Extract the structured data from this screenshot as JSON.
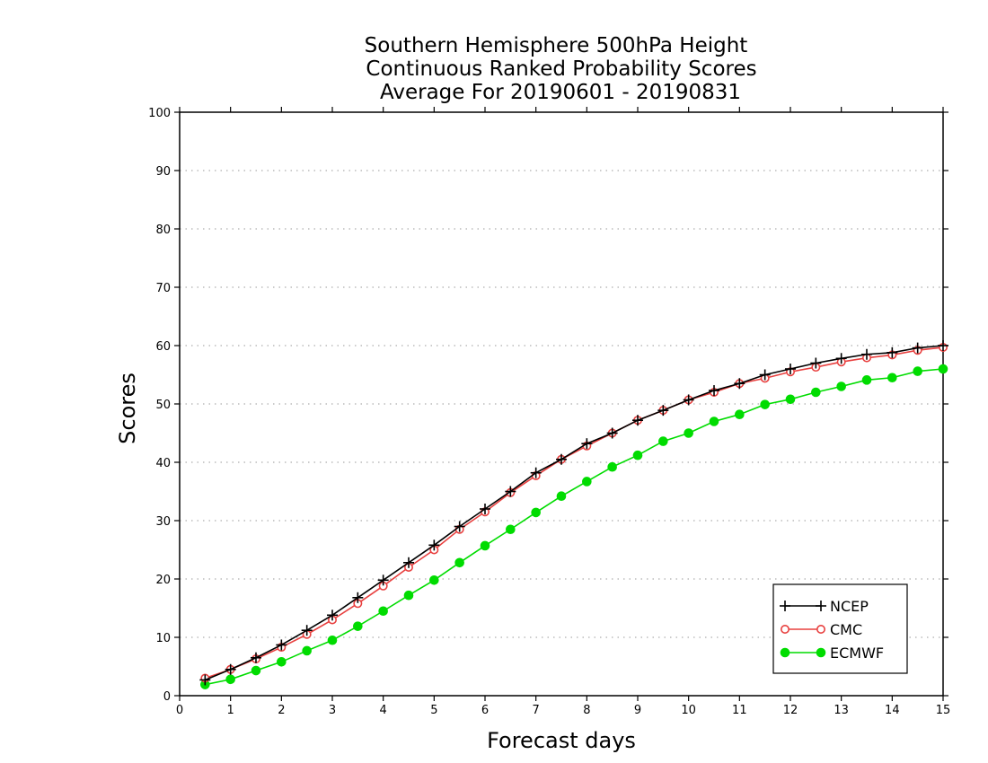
{
  "chart_data": {
    "type": "line",
    "title": [
      "Southern Hemisphere 500hPa Height",
      "Continuous Ranked Probability Scores",
      "Average For 20190601 - 20190831"
    ],
    "xlabel": "Forecast days",
    "ylabel": "Scores",
    "xlim": [
      0,
      15
    ],
    "ylim": [
      0,
      100
    ],
    "xticks": [
      "0",
      "1",
      "2",
      "3",
      "4",
      "5",
      "6",
      "7",
      "8",
      "9",
      "10",
      "11",
      "12",
      "13",
      "14",
      "15"
    ],
    "yticks": [
      "0",
      "10",
      "20",
      "30",
      "40",
      "50",
      "60",
      "70",
      "80",
      "90",
      "100"
    ],
    "grid": "dotted-horizontal",
    "legend_position": "bottom-right",
    "x": [
      0.5,
      1,
      1.5,
      2,
      2.5,
      3,
      3.5,
      4,
      4.5,
      5,
      5.5,
      6,
      6.5,
      7,
      7.5,
      8,
      8.5,
      9,
      9.5,
      10,
      10.5,
      11,
      11.5,
      12,
      12.5,
      13,
      13.5,
      14,
      14.5,
      15
    ],
    "series": [
      {
        "name": "NCEP",
        "color": "#000000",
        "marker": "plus",
        "values": [
          2.7,
          4.5,
          6.5,
          8.7,
          11.2,
          13.8,
          16.8,
          19.8,
          22.8,
          25.8,
          29.0,
          32.0,
          35.0,
          38.2,
          40.5,
          43.2,
          45.0,
          47.2,
          48.9,
          50.7,
          52.3,
          53.5,
          55.0,
          56.0,
          57.0,
          57.8,
          58.5,
          58.8,
          59.6,
          60.0
        ]
      },
      {
        "name": "CMC",
        "color": "#e8403f",
        "marker": "open-circle",
        "values": [
          3.0,
          4.5,
          6.3,
          8.3,
          10.5,
          13.0,
          15.8,
          18.8,
          22.0,
          25.0,
          28.5,
          31.5,
          34.8,
          37.7,
          40.5,
          42.8,
          45.0,
          47.2,
          48.9,
          50.7,
          52.0,
          53.5,
          54.4,
          55.5,
          56.3,
          57.2,
          57.9,
          58.4,
          59.2,
          59.7
        ]
      },
      {
        "name": "ECMWF",
        "color": "#00dc00",
        "marker": "filled-circle",
        "values": [
          1.9,
          2.8,
          4.3,
          5.8,
          7.7,
          9.5,
          11.9,
          14.5,
          17.2,
          19.8,
          22.8,
          25.7,
          28.5,
          31.4,
          34.2,
          36.7,
          39.2,
          41.2,
          43.6,
          45.0,
          47.0,
          48.2,
          49.9,
          50.8,
          52.0,
          53.0,
          54.1,
          54.5,
          55.6,
          56.0
        ]
      }
    ]
  }
}
